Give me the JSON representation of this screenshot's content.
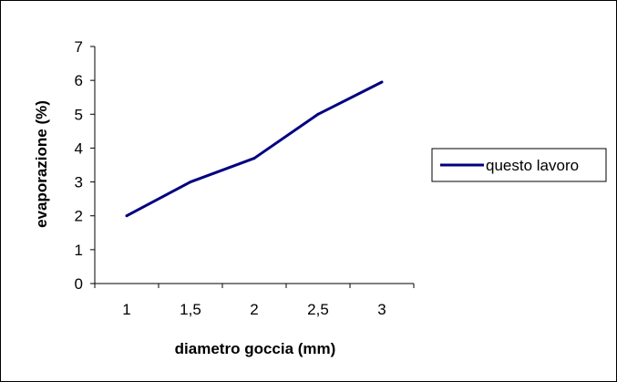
{
  "chart_data": {
    "type": "line",
    "categories": [
      "1",
      "1,5",
      "2",
      "2,5",
      "3"
    ],
    "series": [
      {
        "name": "questo lavoro",
        "values": [
          2.0,
          3.0,
          3.7,
          5.0,
          5.95
        ],
        "color": "#000080"
      }
    ],
    "xlabel": "diametro goccia (mm)",
    "ylabel": "evaporazione (%)",
    "ylim": [
      0,
      7
    ],
    "yticks": [
      "0",
      "1",
      "2",
      "3",
      "4",
      "5",
      "6",
      "7"
    ],
    "grid": false,
    "legend_position": "right"
  }
}
